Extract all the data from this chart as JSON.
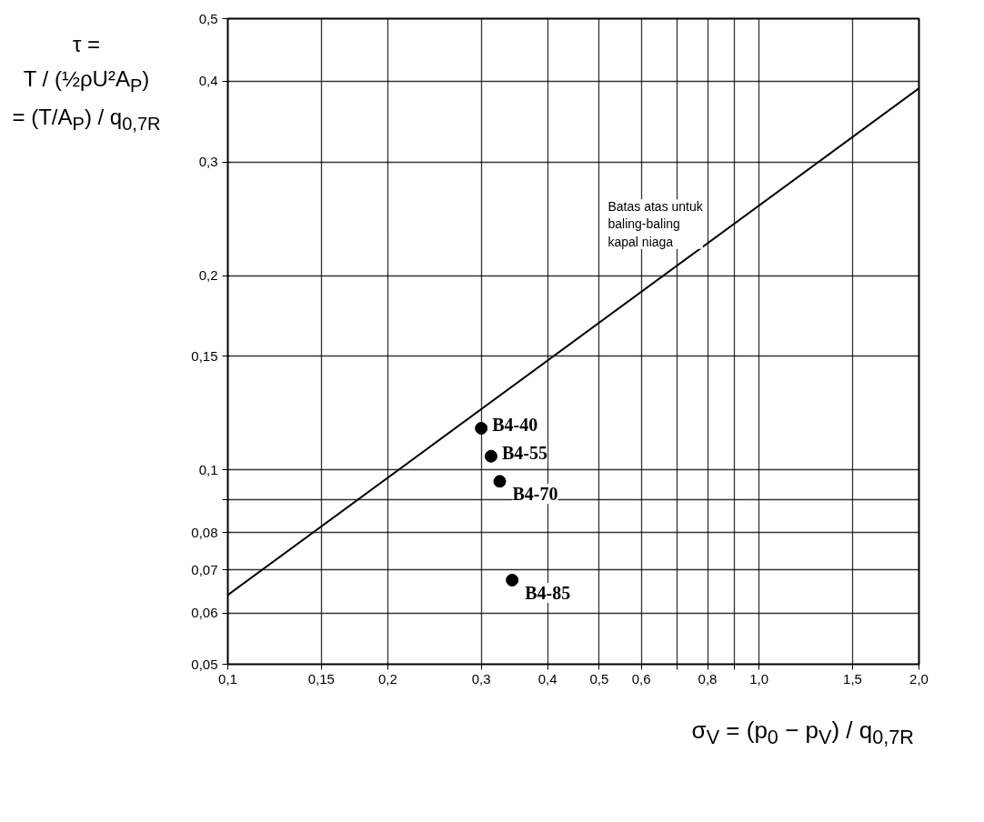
{
  "chart_data": {
    "type": "line",
    "ylabel": "τ =\nT / (½ρU²A$_{P}$)\n= (T/A$_{P}$) / q$_{0,7R}$",
    "xlabel": "σ$_{V}$ = (p$_{0}$ − p$_{V}$) / q$_{0,7R}$",
    "log": "xy",
    "grid": true,
    "xlim": [
      0.1,
      2.0
    ],
    "ylim": [
      0.05,
      0.5
    ],
    "xticks": [
      {
        "value": 0.1,
        "label": "0,1"
      },
      {
        "value": 0.15,
        "label": "0,15"
      },
      {
        "value": 0.2,
        "label": "0,2"
      },
      {
        "value": 0.3,
        "label": "0,3"
      },
      {
        "value": 0.4,
        "label": "0,4"
      },
      {
        "value": 0.5,
        "label": "0,5"
      },
      {
        "value": 0.6,
        "label": "0,6"
      },
      {
        "value": 0.7,
        "label": null
      },
      {
        "value": 0.8,
        "label": "0,8"
      },
      {
        "value": 0.9,
        "label": null
      },
      {
        "value": 1.0,
        "label": "1,0"
      },
      {
        "value": 1.5,
        "label": "1,5"
      },
      {
        "value": 2.0,
        "label": "2,0"
      }
    ],
    "yticks": [
      {
        "value": 0.05,
        "label": "0,05"
      },
      {
        "value": 0.06,
        "label": "0,06"
      },
      {
        "value": 0.07,
        "label": "0,07"
      },
      {
        "value": 0.08,
        "label": "0,08"
      },
      {
        "value": 0.09,
        "label": null
      },
      {
        "value": 0.1,
        "label": "0,1"
      },
      {
        "value": 0.15,
        "label": "0,15"
      },
      {
        "value": 0.2,
        "label": "0,2"
      },
      {
        "value": 0.3,
        "label": "0,3"
      },
      {
        "value": 0.4,
        "label": "0,4"
      },
      {
        "value": 0.5,
        "label": "0,5"
      }
    ],
    "series": [
      {
        "color": "#000000",
        "x": [
          0.1,
          2.0
        ],
        "values": [
          0.064,
          0.39
        ],
        "line_style": "solid"
      },
      {
        "type": "scatter",
        "color": "#000000",
        "x": [
          0.3,
          0.313,
          0.325,
          0.343
        ],
        "values": [
          0.116,
          0.105,
          0.096,
          0.0675
        ],
        "marker": "circle"
      }
    ],
    "annotations": [
      "Batas atas untuk\nbaling-baling\nkapal niaga",
      {
        "text": "B4-40",
        "x": 0.3,
        "y": 0.116
      },
      {
        "text": "B4-55",
        "x": 0.313,
        "y": 0.105
      },
      {
        "text": "B4-70",
        "x": 0.325,
        "y": 0.096
      },
      {
        "text": "B4-85",
        "x": 0.343,
        "y": 0.0675
      }
    ]
  }
}
